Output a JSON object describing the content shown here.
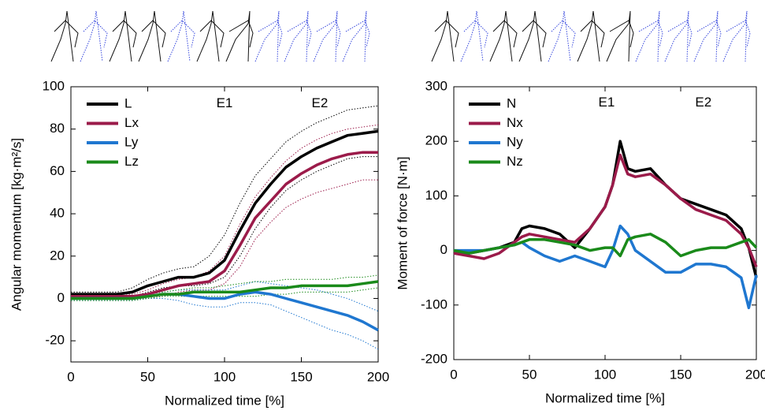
{
  "chart_data": [
    {
      "type": "line",
      "ylabel": "Angular momentum [kg·m²/s]",
      "xlabel": "Normalized time [%]",
      "annotations": [
        {
          "text": "E1",
          "x": 100,
          "y": 92
        },
        {
          "text": "E2",
          "x": 162,
          "y": 92
        }
      ],
      "xlim": [
        0,
        200
      ],
      "xticks": [
        0,
        50,
        100,
        150,
        200
      ],
      "ylim": [
        -30,
        100
      ],
      "yticks": [
        -20,
        0,
        20,
        40,
        60,
        80,
        100
      ],
      "x": [
        0,
        10,
        20,
        30,
        40,
        50,
        60,
        70,
        80,
        90,
        100,
        110,
        120,
        130,
        140,
        150,
        160,
        170,
        180,
        190,
        200
      ],
      "series": [
        {
          "name": "L",
          "color": "#000000",
          "values": [
            2,
            2,
            2,
            2,
            3,
            6,
            8,
            10,
            10,
            12,
            18,
            32,
            45,
            54,
            62,
            67,
            71,
            74,
            77,
            78,
            79
          ],
          "upper": [
            3,
            3,
            3,
            3,
            5,
            9,
            12,
            14,
            15,
            20,
            30,
            45,
            58,
            66,
            74,
            79,
            83,
            86,
            89,
            90,
            91
          ],
          "lower": [
            1,
            1,
            1,
            1,
            1,
            3,
            5,
            6,
            6,
            7,
            10,
            20,
            33,
            43,
            51,
            56,
            60,
            63,
            66,
            67,
            67
          ]
        },
        {
          "name": "Lx",
          "color": "#9b1b4a",
          "values": [
            1,
            1,
            1,
            1,
            1,
            2,
            4,
            6,
            7,
            8,
            13,
            25,
            38,
            46,
            54,
            59,
            63,
            66,
            68,
            69,
            69
          ],
          "upper": [
            2,
            2,
            2,
            2,
            2,
            4,
            7,
            9,
            10,
            13,
            20,
            35,
            48,
            57,
            65,
            71,
            75,
            78,
            80,
            81,
            82
          ],
          "lower": [
            0,
            0,
            0,
            0,
            0,
            0,
            1,
            3,
            4,
            4,
            7,
            15,
            28,
            36,
            43,
            47,
            50,
            52,
            54,
            56,
            56
          ]
        },
        {
          "name": "Ly",
          "color": "#1f77d0",
          "values": [
            0,
            0,
            0,
            0,
            0,
            1,
            2,
            2,
            1,
            0,
            0,
            2,
            3,
            2,
            0,
            -2,
            -4,
            -6,
            -8,
            -11,
            -15
          ],
          "upper": [
            1,
            1,
            1,
            1,
            1,
            2,
            3,
            4,
            4,
            4,
            4,
            6,
            8,
            7,
            6,
            5,
            4,
            2,
            0,
            -3,
            -6
          ],
          "lower": [
            -1,
            -1,
            -1,
            -1,
            -1,
            0,
            0,
            -1,
            -3,
            -4,
            -4,
            -2,
            -2,
            -3,
            -6,
            -9,
            -12,
            -15,
            -17,
            -20,
            -24
          ]
        },
        {
          "name": "Lz",
          "color": "#1a8a1a",
          "values": [
            0,
            0,
            0,
            0,
            0,
            1,
            2,
            2,
            3,
            3,
            3,
            3,
            4,
            5,
            5,
            6,
            6,
            6,
            6,
            7,
            8
          ],
          "upper": [
            1,
            1,
            1,
            1,
            1,
            2,
            3,
            4,
            5,
            5,
            6,
            7,
            8,
            8,
            9,
            9,
            9,
            9,
            10,
            10,
            11
          ],
          "lower": [
            -1,
            -1,
            -1,
            -1,
            -1,
            0,
            1,
            1,
            1,
            1,
            1,
            1,
            1,
            2,
            2,
            3,
            3,
            3,
            3,
            4,
            5
          ]
        }
      ]
    },
    {
      "type": "line",
      "ylabel": "Moment of force [N·m]",
      "xlabel": "Normalized time [%]",
      "annotations": [
        {
          "text": "E1",
          "x": 101,
          "y": 270
        },
        {
          "text": "E2",
          "x": 165,
          "y": 270
        }
      ],
      "xlim": [
        0,
        200
      ],
      "xticks": [
        0,
        50,
        100,
        150,
        200
      ],
      "ylim": [
        -200,
        300
      ],
      "yticks": [
        -200,
        -100,
        0,
        100,
        200,
        300
      ],
      "x": [
        0,
        10,
        20,
        30,
        40,
        45,
        50,
        60,
        70,
        80,
        90,
        100,
        105,
        110,
        115,
        120,
        130,
        140,
        150,
        160,
        170,
        180,
        190,
        195,
        200
      ],
      "series": [
        {
          "name": "N",
          "color": "#000000",
          "values": [
            0,
            -5,
            0,
            5,
            15,
            40,
            45,
            40,
            30,
            5,
            40,
            80,
            120,
            200,
            150,
            145,
            150,
            120,
            95,
            85,
            75,
            65,
            40,
            5,
            -50
          ]
        },
        {
          "name": "Nx",
          "color": "#9b1b4a",
          "values": [
            -5,
            -10,
            -15,
            -5,
            15,
            25,
            30,
            25,
            20,
            15,
            40,
            80,
            120,
            175,
            140,
            135,
            140,
            120,
            95,
            75,
            65,
            55,
            30,
            5,
            -30
          ]
        },
        {
          "name": "Ny",
          "color": "#1f77d0",
          "values": [
            0,
            0,
            0,
            5,
            10,
            15,
            5,
            -10,
            -20,
            -10,
            -20,
            -30,
            0,
            45,
            30,
            0,
            -20,
            -40,
            -40,
            -25,
            -25,
            -30,
            -50,
            -105,
            -45
          ]
        },
        {
          "name": "Nz",
          "color": "#1a8a1a",
          "values": [
            0,
            -5,
            0,
            5,
            10,
            15,
            20,
            20,
            15,
            10,
            0,
            5,
            5,
            -10,
            20,
            25,
            30,
            15,
            -10,
            0,
            5,
            5,
            15,
            20,
            5
          ]
        }
      ]
    }
  ]
}
